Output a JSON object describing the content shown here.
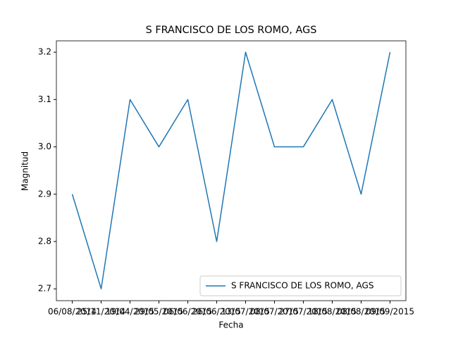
{
  "chart_data": {
    "type": "line",
    "title": "S FRANCISCO DE LOS ROMO, AGS",
    "xlabel": "Fecha",
    "ylabel": "Magnitud",
    "categories": [
      "06/08/2014",
      "25/11/2014",
      "19/04/2015",
      "29/05/2015",
      "06/06/2015",
      "26/06/2015",
      "13/07/2015",
      "08/07/2015",
      "27/07/2015",
      "18/08/2015",
      "08/08/2015",
      "09/09/2015"
    ],
    "series": [
      {
        "name": "S FRANCISCO DE LOS ROMO, AGS",
        "color": "#1f77b4",
        "values": [
          2.9,
          2.7,
          3.1,
          3.0,
          3.1,
          2.8,
          3.2,
          3.0,
          3.0,
          3.1,
          2.9,
          3.2
        ]
      }
    ],
    "ylim": [
      2.675,
      3.224
    ],
    "yticks": [
      {
        "value": 2.7,
        "label": "2.7"
      },
      {
        "value": 2.8,
        "label": "2.8"
      },
      {
        "value": 2.9,
        "label": "2.9"
      },
      {
        "value": 3.0,
        "label": "3.0"
      },
      {
        "value": 3.1,
        "label": "3.1"
      },
      {
        "value": 3.2,
        "label": "3.2"
      }
    ],
    "legend": "lower right",
    "grid": false
  }
}
